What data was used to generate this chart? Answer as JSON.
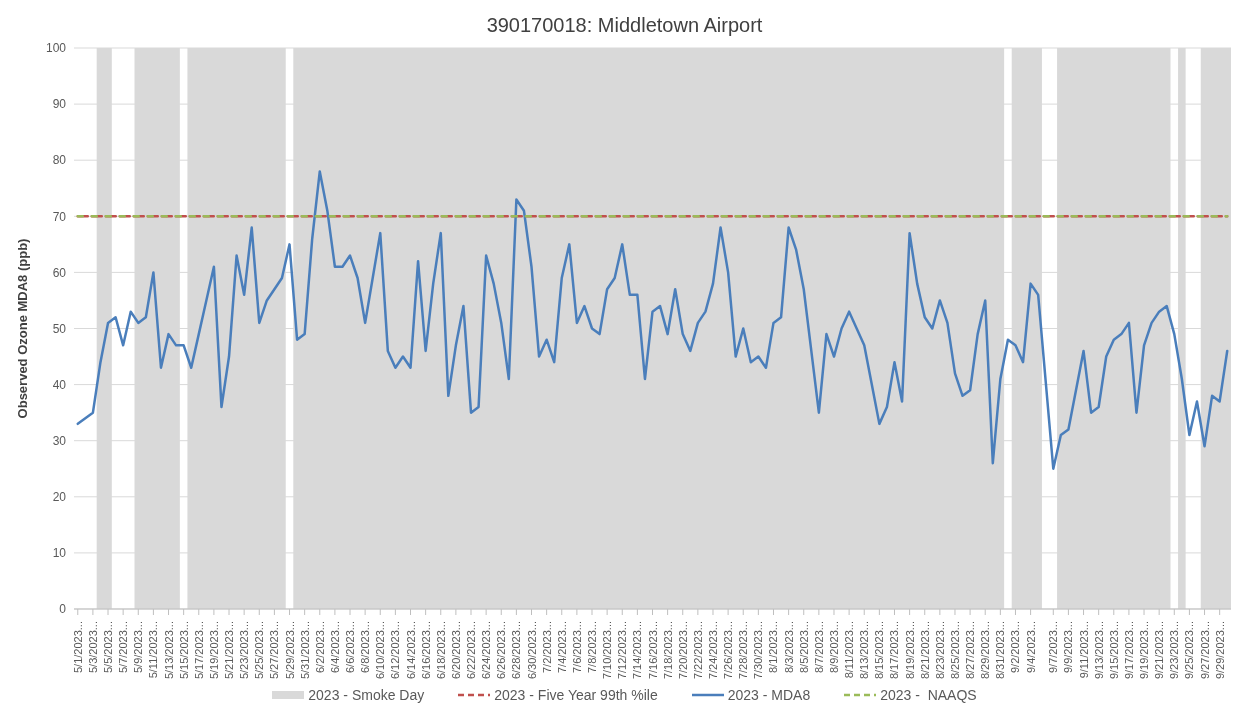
{
  "chart_data": {
    "type": "line",
    "title": "390170018: Middletown Airport",
    "ylabel": "Observed Ozone MDA8 (ppb)",
    "x": [
      "2023-05-01",
      "2023-05-02",
      "2023-05-03",
      "2023-05-04",
      "2023-05-05",
      "2023-05-06",
      "2023-05-07",
      "2023-05-08",
      "2023-05-09",
      "2023-05-10",
      "2023-05-11",
      "2023-05-12",
      "2023-05-13",
      "2023-05-14",
      "2023-05-15",
      "2023-05-16",
      "2023-05-17",
      "2023-05-18",
      "2023-05-19",
      "2023-05-20",
      "2023-05-21",
      "2023-05-22",
      "2023-05-23",
      "2023-05-24",
      "2023-05-25",
      "2023-05-26",
      "2023-05-27",
      "2023-05-28",
      "2023-05-29",
      "2023-05-30",
      "2023-05-31",
      "2023-06-01",
      "2023-06-02",
      "2023-06-03",
      "2023-06-04",
      "2023-06-05",
      "2023-06-06",
      "2023-06-07",
      "2023-06-08",
      "2023-06-09",
      "2023-06-10",
      "2023-06-11",
      "2023-06-12",
      "2023-06-13",
      "2023-06-14",
      "2023-06-15",
      "2023-06-16",
      "2023-06-17",
      "2023-06-18",
      "2023-06-19",
      "2023-06-20",
      "2023-06-21",
      "2023-06-22",
      "2023-06-23",
      "2023-06-24",
      "2023-06-25",
      "2023-06-26",
      "2023-06-27",
      "2023-06-28",
      "2023-06-29",
      "2023-06-30",
      "2023-07-01",
      "2023-07-02",
      "2023-07-03",
      "2023-07-04",
      "2023-07-05",
      "2023-07-06",
      "2023-07-07",
      "2023-07-08",
      "2023-07-09",
      "2023-07-10",
      "2023-07-11",
      "2023-07-12",
      "2023-07-13",
      "2023-07-14",
      "2023-07-15",
      "2023-07-16",
      "2023-07-17",
      "2023-07-18",
      "2023-07-19",
      "2023-07-20",
      "2023-07-21",
      "2023-07-22",
      "2023-07-23",
      "2023-07-24",
      "2023-07-25",
      "2023-07-26",
      "2023-07-27",
      "2023-07-28",
      "2023-07-29",
      "2023-07-30",
      "2023-07-31",
      "2023-08-01",
      "2023-08-02",
      "2023-08-03",
      "2023-08-04",
      "2023-08-05",
      "2023-08-06",
      "2023-08-07",
      "2023-08-08",
      "2023-08-09",
      "2023-08-10",
      "2023-08-11",
      "2023-08-12",
      "2023-08-13",
      "2023-08-14",
      "2023-08-15",
      "2023-08-16",
      "2023-08-17",
      "2023-08-18",
      "2023-08-19",
      "2023-08-20",
      "2023-08-21",
      "2023-08-22",
      "2023-08-23",
      "2023-08-24",
      "2023-08-25",
      "2023-08-26",
      "2023-08-27",
      "2023-08-28",
      "2023-08-29",
      "2023-08-30",
      "2023-08-31",
      "2023-09-01",
      "2023-09-02",
      "2023-09-03",
      "2023-09-04",
      "2023-09-05",
      "2023-09-07",
      "2023-09-08",
      "2023-09-09",
      "2023-09-10",
      "2023-09-11",
      "2023-09-12",
      "2023-09-13",
      "2023-09-14",
      "2023-09-15",
      "2023-09-16",
      "2023-09-17",
      "2023-09-18",
      "2023-09-19",
      "2023-09-20",
      "2023-09-21",
      "2023-09-22",
      "2023-09-23",
      "2023-09-24",
      "2023-09-25",
      "2023-09-26",
      "2023-09-27",
      "2023-09-28",
      "2023-09-29",
      "2023-09-30"
    ],
    "xlim": [
      "2023-04-30T12:00",
      "2023-09-30T12:00"
    ],
    "xticks": [
      {
        "value": "2023-05-01",
        "label": "5/1/2023..."
      },
      {
        "value": "2023-05-03",
        "label": "5/3/2023..."
      },
      {
        "value": "2023-05-05",
        "label": "5/5/2023..."
      },
      {
        "value": "2023-05-07",
        "label": "5/7/2023..."
      },
      {
        "value": "2023-05-09",
        "label": "5/9/2023..."
      },
      {
        "value": "2023-05-11",
        "label": "5/11/2023..."
      },
      {
        "value": "2023-05-13",
        "label": "5/13/2023..."
      },
      {
        "value": "2023-05-15",
        "label": "5/15/2023..."
      },
      {
        "value": "2023-05-17",
        "label": "5/17/2023..."
      },
      {
        "value": "2023-05-19",
        "label": "5/19/2023..."
      },
      {
        "value": "2023-05-21",
        "label": "5/21/2023..."
      },
      {
        "value": "2023-05-23",
        "label": "5/23/2023..."
      },
      {
        "value": "2023-05-25",
        "label": "5/25/2023..."
      },
      {
        "value": "2023-05-27",
        "label": "5/27/2023..."
      },
      {
        "value": "2023-05-29",
        "label": "5/29/2023..."
      },
      {
        "value": "2023-05-31",
        "label": "5/31/2023..."
      },
      {
        "value": "2023-06-02",
        "label": "6/2/2023..."
      },
      {
        "value": "2023-06-04",
        "label": "6/4/2023..."
      },
      {
        "value": "2023-06-06",
        "label": "6/6/2023..."
      },
      {
        "value": "2023-06-08",
        "label": "6/8/2023..."
      },
      {
        "value": "2023-06-10",
        "label": "6/10/2023..."
      },
      {
        "value": "2023-06-12",
        "label": "6/12/2023..."
      },
      {
        "value": "2023-06-14",
        "label": "6/14/2023..."
      },
      {
        "value": "2023-06-16",
        "label": "6/16/2023..."
      },
      {
        "value": "2023-06-18",
        "label": "6/18/2023..."
      },
      {
        "value": "2023-06-20",
        "label": "6/20/2023..."
      },
      {
        "value": "2023-06-22",
        "label": "6/22/2023..."
      },
      {
        "value": "2023-06-24",
        "label": "6/24/2023..."
      },
      {
        "value": "2023-06-26",
        "label": "6/26/2023..."
      },
      {
        "value": "2023-06-28",
        "label": "6/28/2023..."
      },
      {
        "value": "2023-06-30",
        "label": "6/30/2023..."
      },
      {
        "value": "2023-07-02",
        "label": "7/2/2023..."
      },
      {
        "value": "2023-07-04",
        "label": "7/4/2023..."
      },
      {
        "value": "2023-07-06",
        "label": "7/6/2023..."
      },
      {
        "value": "2023-07-08",
        "label": "7/8/2023..."
      },
      {
        "value": "2023-07-10",
        "label": "7/10/2023..."
      },
      {
        "value": "2023-07-12",
        "label": "7/12/2023..."
      },
      {
        "value": "2023-07-14",
        "label": "7/14/2023..."
      },
      {
        "value": "2023-07-16",
        "label": "7/16/2023..."
      },
      {
        "value": "2023-07-18",
        "label": "7/18/2023..."
      },
      {
        "value": "2023-07-20",
        "label": "7/20/2023..."
      },
      {
        "value": "2023-07-22",
        "label": "7/22/2023..."
      },
      {
        "value": "2023-07-24",
        "label": "7/24/2023..."
      },
      {
        "value": "2023-07-26",
        "label": "7/26/2023..."
      },
      {
        "value": "2023-07-28",
        "label": "7/28/2023..."
      },
      {
        "value": "2023-07-30",
        "label": "7/30/2023..."
      },
      {
        "value": "2023-08-01",
        "label": "8/1/2023..."
      },
      {
        "value": "2023-08-03",
        "label": "8/3/2023..."
      },
      {
        "value": "2023-08-05",
        "label": "8/5/2023..."
      },
      {
        "value": "2023-08-07",
        "label": "8/7/2023..."
      },
      {
        "value": "2023-08-09",
        "label": "8/9/2023..."
      },
      {
        "value": "2023-08-11",
        "label": "8/11/2023..."
      },
      {
        "value": "2023-08-13",
        "label": "8/13/2023..."
      },
      {
        "value": "2023-08-15",
        "label": "8/15/2023..."
      },
      {
        "value": "2023-08-17",
        "label": "8/17/2023..."
      },
      {
        "value": "2023-08-19",
        "label": "8/19/2023..."
      },
      {
        "value": "2023-08-21",
        "label": "8/21/2023..."
      },
      {
        "value": "2023-08-23",
        "label": "8/23/2023..."
      },
      {
        "value": "2023-08-25",
        "label": "8/25/2023..."
      },
      {
        "value": "2023-08-27",
        "label": "8/27/2023..."
      },
      {
        "value": "2023-08-29",
        "label": "8/29/2023..."
      },
      {
        "value": "2023-08-31",
        "label": "8/31/2023..."
      },
      {
        "value": "2023-09-02",
        "label": "9/2/2023..."
      },
      {
        "value": "2023-09-04",
        "label": "9/4/2023..."
      },
      {
        "value": "2023-09-07",
        "label": "9/7/2023..."
      },
      {
        "value": "2023-09-09",
        "label": "9/9/2023..."
      },
      {
        "value": "2023-09-11",
        "label": "9/11/2023..."
      },
      {
        "value": "2023-09-13",
        "label": "9/13/2023..."
      },
      {
        "value": "2023-09-15",
        "label": "9/15/2023..."
      },
      {
        "value": "2023-09-17",
        "label": "9/17/2023..."
      },
      {
        "value": "2023-09-19",
        "label": "9/19/2023..."
      },
      {
        "value": "2023-09-21",
        "label": "9/21/2023..."
      },
      {
        "value": "2023-09-23",
        "label": "9/23/2023..."
      },
      {
        "value": "2023-09-25",
        "label": "9/25/2023..."
      },
      {
        "value": "2023-09-27",
        "label": "9/27/2023..."
      },
      {
        "value": "2023-09-29",
        "label": "9/29/2023..."
      }
    ],
    "bands": [
      {
        "axis": "x",
        "from": "2023-05-03T12:00",
        "to": "2023-05-05T12:00",
        "label": "2023 - Smoke Day",
        "color": "#d9d9d9"
      },
      {
        "axis": "x",
        "from": "2023-05-08T12:00",
        "to": "2023-05-14T12:00",
        "color": "#d9d9d9"
      },
      {
        "axis": "x",
        "from": "2023-05-15T12:00",
        "to": "2023-05-28T12:00",
        "color": "#d9d9d9"
      },
      {
        "axis": "x",
        "from": "2023-05-29T12:00",
        "to": "2023-08-31T12:00",
        "color": "#d9d9d9"
      },
      {
        "axis": "x",
        "from": "2023-09-01T12:00",
        "to": "2023-09-05T12:00",
        "color": "#d9d9d9"
      },
      {
        "axis": "x",
        "from": "2023-09-07T12:00",
        "to": "2023-09-22T12:00",
        "color": "#d9d9d9"
      },
      {
        "axis": "x",
        "from": "2023-09-23T12:00",
        "to": "2023-09-24T12:00",
        "color": "#d9d9d9"
      },
      {
        "axis": "x",
        "from": "2023-09-26T12:00",
        "to": "2023-09-30T12:00",
        "color": "#d9d9d9"
      }
    ],
    "series": [
      {
        "name": "2023 - Five Year 99th %ile",
        "color": "#c0504d",
        "line_style": "dashed",
        "values": [
          70,
          70,
          70,
          70,
          70,
          70,
          70,
          70,
          70,
          70,
          70,
          70,
          70,
          70,
          70,
          70,
          70,
          70,
          70,
          70,
          70,
          70,
          70,
          70,
          70,
          70,
          70,
          70,
          70,
          70,
          70,
          70,
          70,
          70,
          70,
          70,
          70,
          70,
          70,
          70,
          70,
          70,
          70,
          70,
          70,
          70,
          70,
          70,
          70,
          70,
          70,
          70,
          70,
          70,
          70,
          70,
          70,
          70,
          70,
          70,
          70,
          70,
          70,
          70,
          70,
          70,
          70,
          70,
          70,
          70,
          70,
          70,
          70,
          70,
          70,
          70,
          70,
          70,
          70,
          70,
          70,
          70,
          70,
          70,
          70,
          70,
          70,
          70,
          70,
          70,
          70,
          70,
          70,
          70,
          70,
          70,
          70,
          70,
          70,
          70,
          70,
          70,
          70,
          70,
          70,
          70,
          70,
          70,
          70,
          70,
          70,
          70,
          70,
          70,
          70,
          70,
          70,
          70,
          70,
          70,
          70,
          70,
          70,
          70,
          70,
          70,
          70,
          70,
          70,
          70,
          70,
          70,
          70,
          70,
          70,
          70,
          70,
          70,
          70,
          70,
          70,
          70,
          70,
          70,
          70,
          70,
          70,
          70,
          70,
          70,
          70,
          70
        ]
      },
      {
        "name": "2023 - MDA8",
        "color": "#4a7ebb",
        "line_style": "solid",
        "values": [
          33,
          34,
          35,
          44,
          51,
          52,
          47,
          53,
          51,
          52,
          60,
          43,
          49,
          47,
          47,
          43,
          49,
          55,
          61,
          36,
          45,
          63,
          56,
          68,
          51,
          55,
          57,
          59,
          65,
          48,
          49,
          66,
          78,
          71,
          61,
          61,
          63,
          59,
          51,
          59,
          67,
          46,
          43,
          45,
          43,
          62,
          46,
          58,
          67,
          38,
          47,
          54,
          35,
          36,
          63,
          58,
          51,
          41,
          73,
          71,
          61,
          45,
          48,
          44,
          59,
          65,
          51,
          54,
          50,
          49,
          57,
          59,
          65,
          56,
          56,
          41,
          53,
          54,
          49,
          57,
          49,
          46,
          51,
          53,
          58,
          68,
          60,
          45,
          50,
          44,
          45,
          43,
          51,
          52,
          68,
          64,
          57,
          46,
          35,
          49,
          45,
          50,
          53,
          50,
          47,
          40,
          33,
          36,
          44,
          37,
          67,
          58,
          52,
          50,
          55,
          51,
          42,
          38,
          39,
          49,
          55,
          26,
          41,
          48,
          47,
          44,
          58,
          56,
          25,
          31,
          32,
          39,
          46,
          35,
          36,
          45,
          48,
          49,
          51,
          35,
          47,
          51,
          53,
          54,
          49,
          41,
          31,
          37,
          29,
          38,
          37,
          46
        ]
      },
      {
        "name": "2023 -  NAAQS",
        "color": "#9bbb59",
        "line_style": "dashed",
        "values": [
          70,
          70,
          70,
          70,
          70,
          70,
          70,
          70,
          70,
          70,
          70,
          70,
          70,
          70,
          70,
          70,
          70,
          70,
          70,
          70,
          70,
          70,
          70,
          70,
          70,
          70,
          70,
          70,
          70,
          70,
          70,
          70,
          70,
          70,
          70,
          70,
          70,
          70,
          70,
          70,
          70,
          70,
          70,
          70,
          70,
          70,
          70,
          70,
          70,
          70,
          70,
          70,
          70,
          70,
          70,
          70,
          70,
          70,
          70,
          70,
          70,
          70,
          70,
          70,
          70,
          70,
          70,
          70,
          70,
          70,
          70,
          70,
          70,
          70,
          70,
          70,
          70,
          70,
          70,
          70,
          70,
          70,
          70,
          70,
          70,
          70,
          70,
          70,
          70,
          70,
          70,
          70,
          70,
          70,
          70,
          70,
          70,
          70,
          70,
          70,
          70,
          70,
          70,
          70,
          70,
          70,
          70,
          70,
          70,
          70,
          70,
          70,
          70,
          70,
          70,
          70,
          70,
          70,
          70,
          70,
          70,
          70,
          70,
          70,
          70,
          70,
          70,
          70,
          70,
          70,
          70,
          70,
          70,
          70,
          70,
          70,
          70,
          70,
          70,
          70,
          70,
          70,
          70,
          70,
          70,
          70,
          70,
          70,
          70,
          70,
          70,
          70
        ]
      }
    ],
    "ylim": [
      0,
      100
    ],
    "yticks": [
      0,
      10,
      20,
      30,
      40,
      50,
      60,
      70,
      80,
      90,
      100
    ],
    "grid": "y",
    "legend": "bottom"
  }
}
